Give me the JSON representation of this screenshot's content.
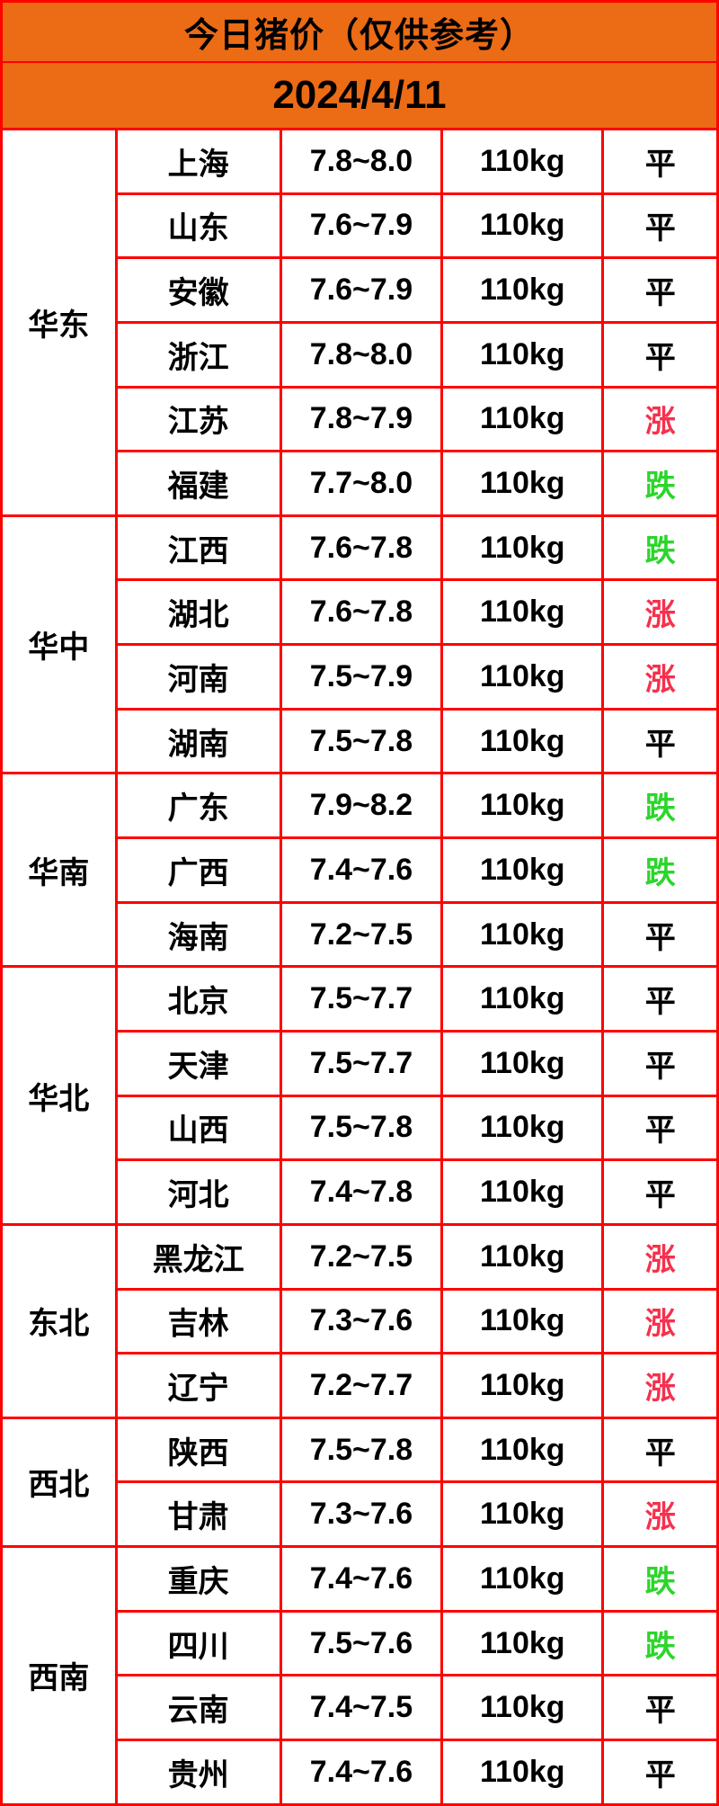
{
  "colors": {
    "header_bg": "#EC6B15",
    "border": "#FF0000",
    "rise": "#F5314D",
    "fall": "#2CD52C",
    "flat": "#000000"
  },
  "chart_data": {
    "type": "table",
    "title": "今日猪价（仅供参考）",
    "date": "2024/4/11",
    "trend_legend": {
      "rise": "涨",
      "fall": "跌",
      "flat": "平"
    },
    "regions": [
      {
        "name": "华东",
        "rows": [
          {
            "province": "上海",
            "price": "7.8~8.0",
            "weight": "110kg",
            "status": "平",
            "trend": "flat"
          },
          {
            "province": "山东",
            "price": "7.6~7.9",
            "weight": "110kg",
            "status": "平",
            "trend": "flat"
          },
          {
            "province": "安徽",
            "price": "7.6~7.9",
            "weight": "110kg",
            "status": "平",
            "trend": "flat"
          },
          {
            "province": "浙江",
            "price": "7.8~8.0",
            "weight": "110kg",
            "status": "平",
            "trend": "flat"
          },
          {
            "province": "江苏",
            "price": "7.8~7.9",
            "weight": "110kg",
            "status": "涨",
            "trend": "rise"
          },
          {
            "province": "福建",
            "price": "7.7~8.0",
            "weight": "110kg",
            "status": "跌",
            "trend": "fall"
          }
        ]
      },
      {
        "name": "华中",
        "rows": [
          {
            "province": "江西",
            "price": "7.6~7.8",
            "weight": "110kg",
            "status": "跌",
            "trend": "fall"
          },
          {
            "province": "湖北",
            "price": "7.6~7.8",
            "weight": "110kg",
            "status": "涨",
            "trend": "rise"
          },
          {
            "province": "河南",
            "price": "7.5~7.9",
            "weight": "110kg",
            "status": "涨",
            "trend": "rise"
          },
          {
            "province": "湖南",
            "price": "7.5~7.8",
            "weight": "110kg",
            "status": "平",
            "trend": "flat"
          }
        ]
      },
      {
        "name": "华南",
        "rows": [
          {
            "province": "广东",
            "price": "7.9~8.2",
            "weight": "110kg",
            "status": "跌",
            "trend": "fall"
          },
          {
            "province": "广西",
            "price": "7.4~7.6",
            "weight": "110kg",
            "status": "跌",
            "trend": "fall"
          },
          {
            "province": "海南",
            "price": "7.2~7.5",
            "weight": "110kg",
            "status": "平",
            "trend": "flat"
          }
        ]
      },
      {
        "name": "华北",
        "rows": [
          {
            "province": "北京",
            "price": "7.5~7.7",
            "weight": "110kg",
            "status": "平",
            "trend": "flat"
          },
          {
            "province": "天津",
            "price": "7.5~7.7",
            "weight": "110kg",
            "status": "平",
            "trend": "flat"
          },
          {
            "province": "山西",
            "price": "7.5~7.8",
            "weight": "110kg",
            "status": "平",
            "trend": "flat"
          },
          {
            "province": "河北",
            "price": "7.4~7.8",
            "weight": "110kg",
            "status": "平",
            "trend": "flat"
          }
        ]
      },
      {
        "name": "东北",
        "rows": [
          {
            "province": "黑龙江",
            "price": "7.2~7.5",
            "weight": "110kg",
            "status": "涨",
            "trend": "rise"
          },
          {
            "province": "吉林",
            "price": "7.3~7.6",
            "weight": "110kg",
            "status": "涨",
            "trend": "rise"
          },
          {
            "province": "辽宁",
            "price": "7.2~7.7",
            "weight": "110kg",
            "status": "涨",
            "trend": "rise"
          }
        ]
      },
      {
        "name": "西北",
        "rows": [
          {
            "province": "陕西",
            "price": "7.5~7.8",
            "weight": "110kg",
            "status": "平",
            "trend": "flat"
          },
          {
            "province": "甘肃",
            "price": "7.3~7.6",
            "weight": "110kg",
            "status": "涨",
            "trend": "rise"
          }
        ]
      },
      {
        "name": "西南",
        "rows": [
          {
            "province": "重庆",
            "price": "7.4~7.6",
            "weight": "110kg",
            "status": "跌",
            "trend": "fall"
          },
          {
            "province": "四川",
            "price": "7.5~7.6",
            "weight": "110kg",
            "status": "跌",
            "trend": "fall"
          },
          {
            "province": "云南",
            "price": "7.4~7.5",
            "weight": "110kg",
            "status": "平",
            "trend": "flat"
          },
          {
            "province": "贵州",
            "price": "7.4~7.6",
            "weight": "110kg",
            "status": "平",
            "trend": "flat"
          }
        ]
      }
    ]
  }
}
